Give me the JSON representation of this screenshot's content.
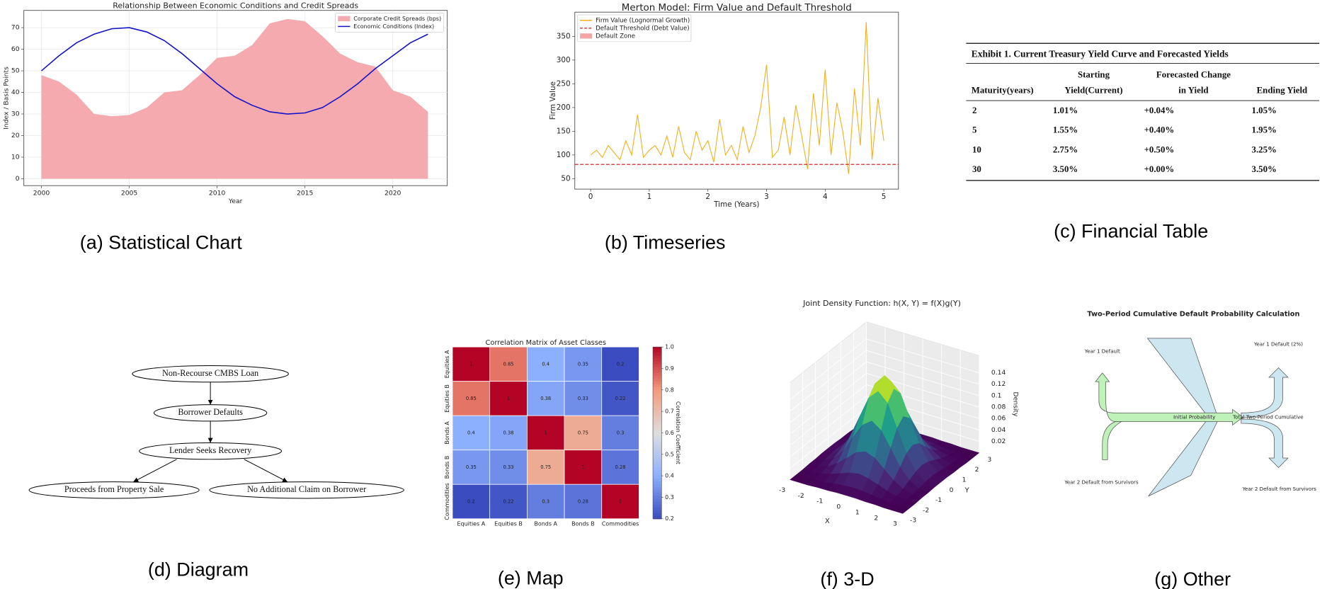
{
  "captions": [
    "(a) Statistical Chart",
    "(b) Timeseries",
    "(c) Financial Table",
    "(d) Diagram",
    "(e) Map",
    "(f) 3-D",
    "(g) Other"
  ],
  "chart_data": [
    {
      "type": "area_line",
      "title": "Relationship Between Economic Conditions and Credit Spreads",
      "x_label": "Year",
      "y_label": "Index / Basis Points",
      "x": [
        2000,
        2001,
        2002,
        2003,
        2004,
        2005,
        2006,
        2007,
        2008,
        2009,
        2010,
        2011,
        2012,
        2013,
        2014,
        2015,
        2016,
        2017,
        2018,
        2019,
        2020,
        2021,
        2022
      ],
      "series": [
        {
          "name": "Corporate Credit Spreads (bps)",
          "kind": "area",
          "color": "#f4aaae",
          "values": [
            48,
            45,
            39,
            30,
            29,
            29.5,
            33,
            40,
            41,
            48,
            56,
            57,
            62,
            72,
            74,
            73,
            66,
            58,
            54,
            52,
            41,
            38,
            31
          ]
        },
        {
          "name": "Economic Conditions (Index)",
          "kind": "line",
          "color": "#1212c8",
          "values": [
            50,
            57,
            63,
            67,
            69.5,
            70,
            68,
            64,
            58,
            51,
            44,
            38,
            34,
            31,
            30,
            30.5,
            33,
            38,
            44,
            51,
            57,
            63,
            67
          ]
        }
      ],
      "xlim": [
        1999,
        2023.1
      ],
      "ylim": [
        -3.2,
        78
      ],
      "xticks": [
        2000,
        2005,
        2010,
        2015,
        2020
      ],
      "yticks": [
        0,
        10,
        20,
        30,
        40,
        50,
        60,
        70
      ],
      "grid": true,
      "legend": "upper right"
    },
    {
      "type": "line",
      "title": "Merton Model: Firm Value and Default Threshold",
      "x_label": "Time (Years)",
      "y_label": "Firm Value",
      "x": [
        0,
        0.1,
        0.2,
        0.3,
        0.4,
        0.5,
        0.6,
        0.7,
        0.8,
        0.9,
        1,
        1.1,
        1.2,
        1.3,
        1.4,
        1.5,
        1.6,
        1.7,
        1.8,
        1.9,
        2,
        2.1,
        2.2,
        2.3,
        2.4,
        2.5,
        2.6,
        2.7,
        2.8,
        2.9,
        3,
        3.1,
        3.2,
        3.3,
        3.4,
        3.5,
        3.6,
        3.7,
        3.8,
        3.9,
        4,
        4.1,
        4.2,
        4.3,
        4.4,
        4.5,
        4.6,
        4.7,
        4.8,
        4.9,
        5
      ],
      "series": [
        {
          "name": "Firm Value (Lognormal Growth)",
          "color": "#f0b020",
          "values": [
            100,
            110,
            95,
            120,
            105,
            90,
            130,
            100,
            185,
            95,
            110,
            120,
            100,
            140,
            95,
            160,
            105,
            90,
            150,
            110,
            130,
            85,
            175,
            100,
            120,
            90,
            160,
            105,
            140,
            200,
            290,
            95,
            110,
            180,
            100,
            205,
            140,
            70,
            230,
            120,
            280,
            100,
            210,
            150,
            60,
            240,
            120,
            380,
            90,
            220,
            130
          ]
        }
      ],
      "threshold": {
        "name": "Default Threshold (Debt Value)",
        "color": "#d62728",
        "value": 80
      },
      "zone": {
        "name": "Default Zone",
        "color": "#f4a6a6"
      },
      "xlim": [
        -0.27,
        5.25
      ],
      "ylim": [
        28,
        401
      ],
      "xticks": [
        0,
        1,
        2,
        3,
        4,
        5
      ],
      "yticks": [
        50,
        100,
        150,
        200,
        250,
        300,
        350
      ],
      "legend": "upper left"
    },
    {
      "type": "heatmap",
      "title": "Correlation Matrix of Asset Classes",
      "categories": [
        "Equities A",
        "Equities B",
        "Bonds A",
        "Bonds B",
        "Commodities"
      ],
      "values": [
        [
          1,
          0.85,
          0.4,
          0.35,
          0.2
        ],
        [
          0.85,
          1,
          0.38,
          0.33,
          0.22
        ],
        [
          0.4,
          0.38,
          1,
          0.75,
          0.3
        ],
        [
          0.35,
          0.33,
          0.75,
          1,
          0.28
        ],
        [
          0.2,
          0.22,
          0.3,
          0.28,
          1
        ]
      ],
      "colormap": "coolwarm",
      "clim": [
        0.2,
        1
      ],
      "cticks": [
        0.2,
        0.3,
        0.4,
        0.5,
        0.6,
        0.7,
        0.8,
        0.9,
        {
          "value": 1,
          "label": "1.0"
        }
      ],
      "colorbar_label": "Correlation Coefficient"
    },
    {
      "type": "surface",
      "title": "Joint Density Function: h(X, Y) = f(X)g(Y)",
      "x_label": "X",
      "y_label": "Y",
      "z_label": "Density",
      "x": [
        -3,
        -2.5,
        -2,
        -1.5,
        -1,
        -0.5,
        0,
        0.5,
        1,
        1.5,
        2,
        2.5,
        3
      ],
      "y": [
        -3,
        -2.5,
        -2,
        -1.5,
        -1,
        -0.5,
        0,
        0.5,
        1,
        1.5,
        2,
        2.5,
        3
      ],
      "z": [
        [
          0,
          0,
          0,
          0.001,
          0.001,
          0.002,
          0.002,
          0.002,
          0.001,
          0.001,
          0,
          0,
          0
        ],
        [
          0,
          0,
          0.001,
          0.002,
          0.004,
          0.006,
          0.007,
          0.006,
          0.004,
          0.002,
          0.001,
          0,
          0
        ],
        [
          0,
          0.001,
          0.003,
          0.007,
          0.013,
          0.019,
          0.022,
          0.019,
          0.013,
          0.007,
          0.003,
          0.001,
          0
        ],
        [
          0.001,
          0.002,
          0.007,
          0.017,
          0.031,
          0.046,
          0.052,
          0.046,
          0.031,
          0.017,
          0.007,
          0.002,
          0.001
        ],
        [
          0.001,
          0.004,
          0.013,
          0.031,
          0.059,
          0.085,
          0.097,
          0.085,
          0.059,
          0.031,
          0.013,
          0.004,
          0.001
        ],
        [
          0.002,
          0.006,
          0.019,
          0.046,
          0.085,
          0.124,
          0.14,
          0.124,
          0.085,
          0.046,
          0.019,
          0.006,
          0.002
        ],
        [
          0.002,
          0.007,
          0.022,
          0.052,
          0.097,
          0.14,
          0.159,
          0.14,
          0.097,
          0.052,
          0.022,
          0.007,
          0.002
        ],
        [
          0.002,
          0.006,
          0.019,
          0.046,
          0.085,
          0.124,
          0.14,
          0.124,
          0.085,
          0.046,
          0.019,
          0.006,
          0.002
        ],
        [
          0.001,
          0.004,
          0.013,
          0.031,
          0.059,
          0.085,
          0.097,
          0.085,
          0.059,
          0.031,
          0.013,
          0.004,
          0.001
        ],
        [
          0.001,
          0.002,
          0.007,
          0.017,
          0.031,
          0.046,
          0.052,
          0.046,
          0.031,
          0.017,
          0.007,
          0.002,
          0.001
        ],
        [
          0,
          0.001,
          0.003,
          0.007,
          0.013,
          0.019,
          0.022,
          0.019,
          0.013,
          0.007,
          0.003,
          0.001,
          0
        ],
        [
          0,
          0,
          0.001,
          0.002,
          0.004,
          0.006,
          0.007,
          0.006,
          0.004,
          0.002,
          0.001,
          0,
          0
        ],
        [
          0,
          0,
          0,
          0.001,
          0.001,
          0.002,
          0.002,
          0.002,
          0.001,
          0.001,
          0,
          0,
          0
        ]
      ],
      "xlim": [
        -3,
        3
      ],
      "ylim": [
        -3,
        3
      ],
      "zlim": [
        0,
        0.17
      ],
      "xticks": [
        -3,
        -2,
        -1,
        0,
        1,
        2,
        3
      ],
      "yticks": [
        -3,
        -2,
        -1,
        0,
        1,
        2,
        3
      ],
      "zticks": [
        0.02,
        0.04,
        0.06,
        0.08,
        0.1,
        0.12,
        0.14
      ],
      "colormap": "viridis"
    }
  ],
  "table": {
    "title": "Exhibit 1. Current Treasury Yield Curve and Forecasted Yields",
    "header": [
      [
        "Starting",
        "Forecasted Change"
      ],
      [
        "Maturity(years)",
        "Yield(Current)",
        "in Yield",
        "Ending Yield"
      ]
    ],
    "rows": [
      [
        "2",
        "1.01%",
        "+0.04%",
        "1.05%"
      ],
      [
        "5",
        "1.55%",
        "+0.40%",
        "1.95%"
      ],
      [
        "10",
        "2.75%",
        "+0.50%",
        "3.25%"
      ],
      [
        "30",
        "3.50%",
        "+0.00%",
        "3.50%"
      ]
    ]
  },
  "diagram": {
    "nodes": [
      {
        "label": "Non-Recourse CMBS Loan"
      },
      {
        "label": "Borrower Defaults"
      },
      {
        "label": "Lender Seeks Recovery"
      },
      {
        "label": "Proceeds from Property Sale"
      },
      {
        "label": "No Additional Claim on Borrower"
      }
    ]
  },
  "flow_diagram": {
    "title": "Two-Period Cumulative Default Probability Calculation",
    "labels": [
      "Year 1 Default",
      "Year 1 Default (2%)",
      "Initial Probability",
      "Total Two-Period Cumulative",
      "Year 2 Default from Survivors",
      "Year 2 Default from Survivors"
    ]
  }
}
